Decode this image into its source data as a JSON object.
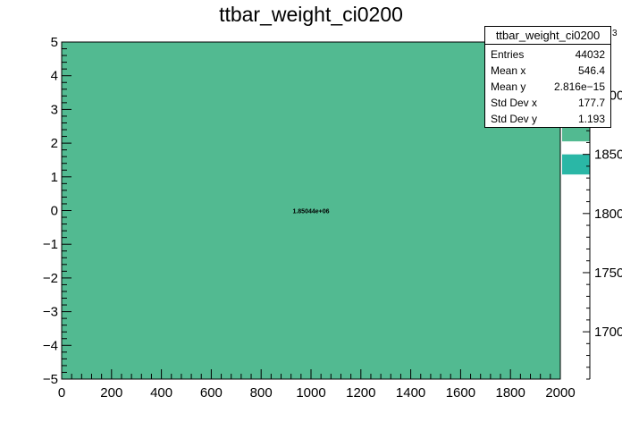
{
  "chart_data": {
    "type": "heatmap",
    "title": "ttbar_weight_ci0200",
    "xlabel": "",
    "ylabel": "",
    "xlim": [
      0,
      2000
    ],
    "ylim": [
      -5,
      5
    ],
    "x_ticks": [
      "0",
      "200",
      "400",
      "600",
      "800",
      "1000",
      "1200",
      "1400",
      "1600",
      "1800",
      "2000"
    ],
    "y_ticks": [
      "5",
      "4",
      "3",
      "2",
      "1",
      "0",
      "−1",
      "−2",
      "−3",
      "−4",
      "−5"
    ],
    "cells": [
      {
        "x": [
          0,
          2000
        ],
        "y": [
          -5,
          5
        ],
        "value": 1850440,
        "label": "1.85044e+06",
        "color": "#52ba91"
      }
    ],
    "colorbar": {
      "exponent_label": "3",
      "ticks": [
        "1900",
        "1850",
        "1800",
        "1750",
        "1700"
      ],
      "range": [
        1660,
        1945
      ],
      "colors": [
        "#52ba91",
        "#2ab7a6"
      ]
    },
    "stats": {
      "title": "ttbar_weight_ci0200",
      "rows": [
        {
          "key": "Entries",
          "value": "44032"
        },
        {
          "key": "Mean x",
          "value": "546.4"
        },
        {
          "key": "Mean y",
          "value": "2.816e−15"
        },
        {
          "key": "Std Dev x",
          "value": "177.7"
        },
        {
          "key": "Std Dev y",
          "value": "1.193"
        }
      ]
    }
  }
}
